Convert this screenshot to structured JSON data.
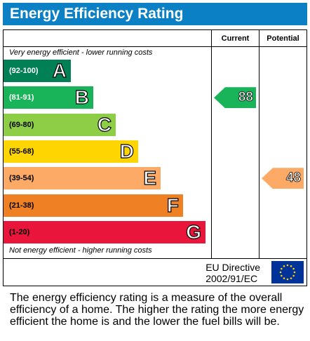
{
  "title": "Energy Efficiency Rating",
  "headers": {
    "current": "Current",
    "potential": "Potential"
  },
  "notes": {
    "top": "Very energy efficient - lower running costs",
    "bottom": "Not energy efficient - higher running costs"
  },
  "bands": [
    {
      "range": "(92-100)",
      "letter": "A",
      "color": "#008054",
      "text_color": "#ffffff"
    },
    {
      "range": "(81-91)",
      "letter": "B",
      "color": "#19b459",
      "text_color": "#ffffff"
    },
    {
      "range": "(69-80)",
      "letter": "C",
      "color": "#8dce46",
      "text_color": "#000000"
    },
    {
      "range": "(55-68)",
      "letter": "D",
      "color": "#ffd500",
      "text_color": "#000000"
    },
    {
      "range": "(39-54)",
      "letter": "E",
      "color": "#fcaa65",
      "text_color": "#000000"
    },
    {
      "range": "(21-38)",
      "letter": "F",
      "color": "#ef8023",
      "text_color": "#000000"
    },
    {
      "range": "(1-20)",
      "letter": "G",
      "color": "#e9153b",
      "text_color": "#000000"
    }
  ],
  "current": {
    "value": "88",
    "band": "B",
    "color": "#19b459"
  },
  "potential": {
    "value": "48",
    "band": "E",
    "color": "#fcaa65"
  },
  "eu_directive": {
    "line1": "EU Directive",
    "line2": "2002/91/EC"
  },
  "description": "The energy efficiency rating is a measure of the overall efficiency of a home. The higher the rating the more energy efficient the home is and the lower the fuel bills will be."
}
